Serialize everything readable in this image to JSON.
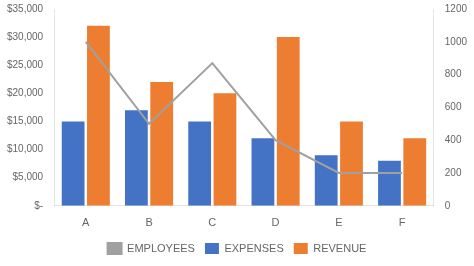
{
  "chart_data": {
    "type": "bar",
    "categories": [
      "A",
      "B",
      "C",
      "D",
      "E",
      "F"
    ],
    "series": [
      {
        "name": "EXPENSES",
        "type": "bar",
        "color": "#4472C4",
        "values": [
          15000,
          17000,
          15000,
          12000,
          9000,
          8000
        ]
      },
      {
        "name": "REVENUE",
        "type": "bar",
        "color": "#ED7D31",
        "values": [
          32000,
          22000,
          20000,
          30000,
          15000,
          12000
        ]
      },
      {
        "name": "EMPLOYEES",
        "type": "line",
        "axis": "y2",
        "color": "#A0A0A0",
        "marker": "none",
        "values": [
          1000,
          500,
          870,
          400,
          200,
          200
        ]
      }
    ],
    "ylim": [
      0,
      35000
    ],
    "yticks": [
      {
        "value": 0,
        "label": "$-"
      },
      {
        "value": 5000,
        "label": "$5,000"
      },
      {
        "value": 10000,
        "label": "$10,000"
      },
      {
        "value": 15000,
        "label": "$15,000"
      },
      {
        "value": 20000,
        "label": "$20,000"
      },
      {
        "value": 25000,
        "label": "$25,000"
      },
      {
        "value": 30000,
        "label": "$30,000"
      },
      {
        "value": 35000,
        "label": "$35,000"
      }
    ],
    "y2lim": [
      0,
      1200
    ],
    "y2ticks": [
      0,
      200,
      400,
      600,
      800,
      1000,
      1200
    ],
    "grid": false,
    "legend": "bottom"
  }
}
